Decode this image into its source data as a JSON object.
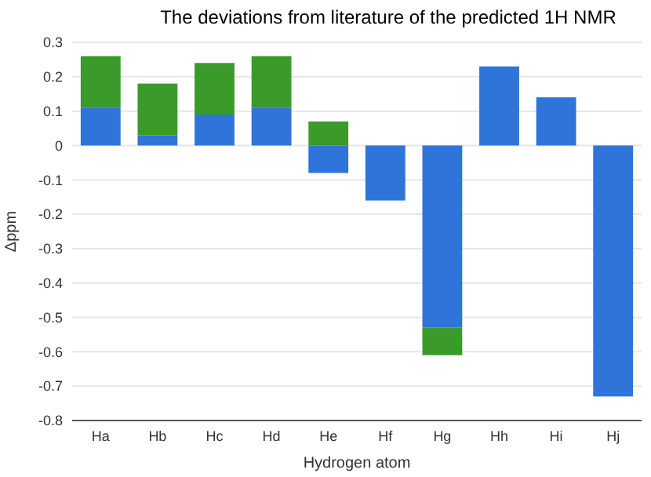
{
  "chart_data": {
    "type": "bar",
    "title": "The deviations from literature of the predicted 1H NMR",
    "xlabel": "Hydrogen atom",
    "ylabel": "Δppm",
    "categories": [
      "Ha",
      "Hb",
      "Hc",
      "Hd",
      "He",
      "Hf",
      "Hg",
      "Hh",
      "Hi",
      "Hj"
    ],
    "stacked": true,
    "series": [
      {
        "color": "#2f74d8",
        "values": [
          0.11,
          0.03,
          0.09,
          0.11,
          -0.08,
          -0.16,
          -0.53,
          0.23,
          0.14,
          -0.73
        ]
      },
      {
        "color": "#3a9a2a",
        "values": [
          0.15,
          0.15,
          0.15,
          0.15,
          0.07,
          null,
          -0.08,
          null,
          null,
          null
        ]
      }
    ],
    "ylim": [
      -0.8,
      0.3
    ],
    "yticks": [
      -0.8,
      -0.7,
      -0.6,
      -0.5,
      -0.4,
      -0.3,
      -0.2,
      -0.1,
      0,
      0.1,
      0.2,
      0.3
    ],
    "grid": "y"
  }
}
